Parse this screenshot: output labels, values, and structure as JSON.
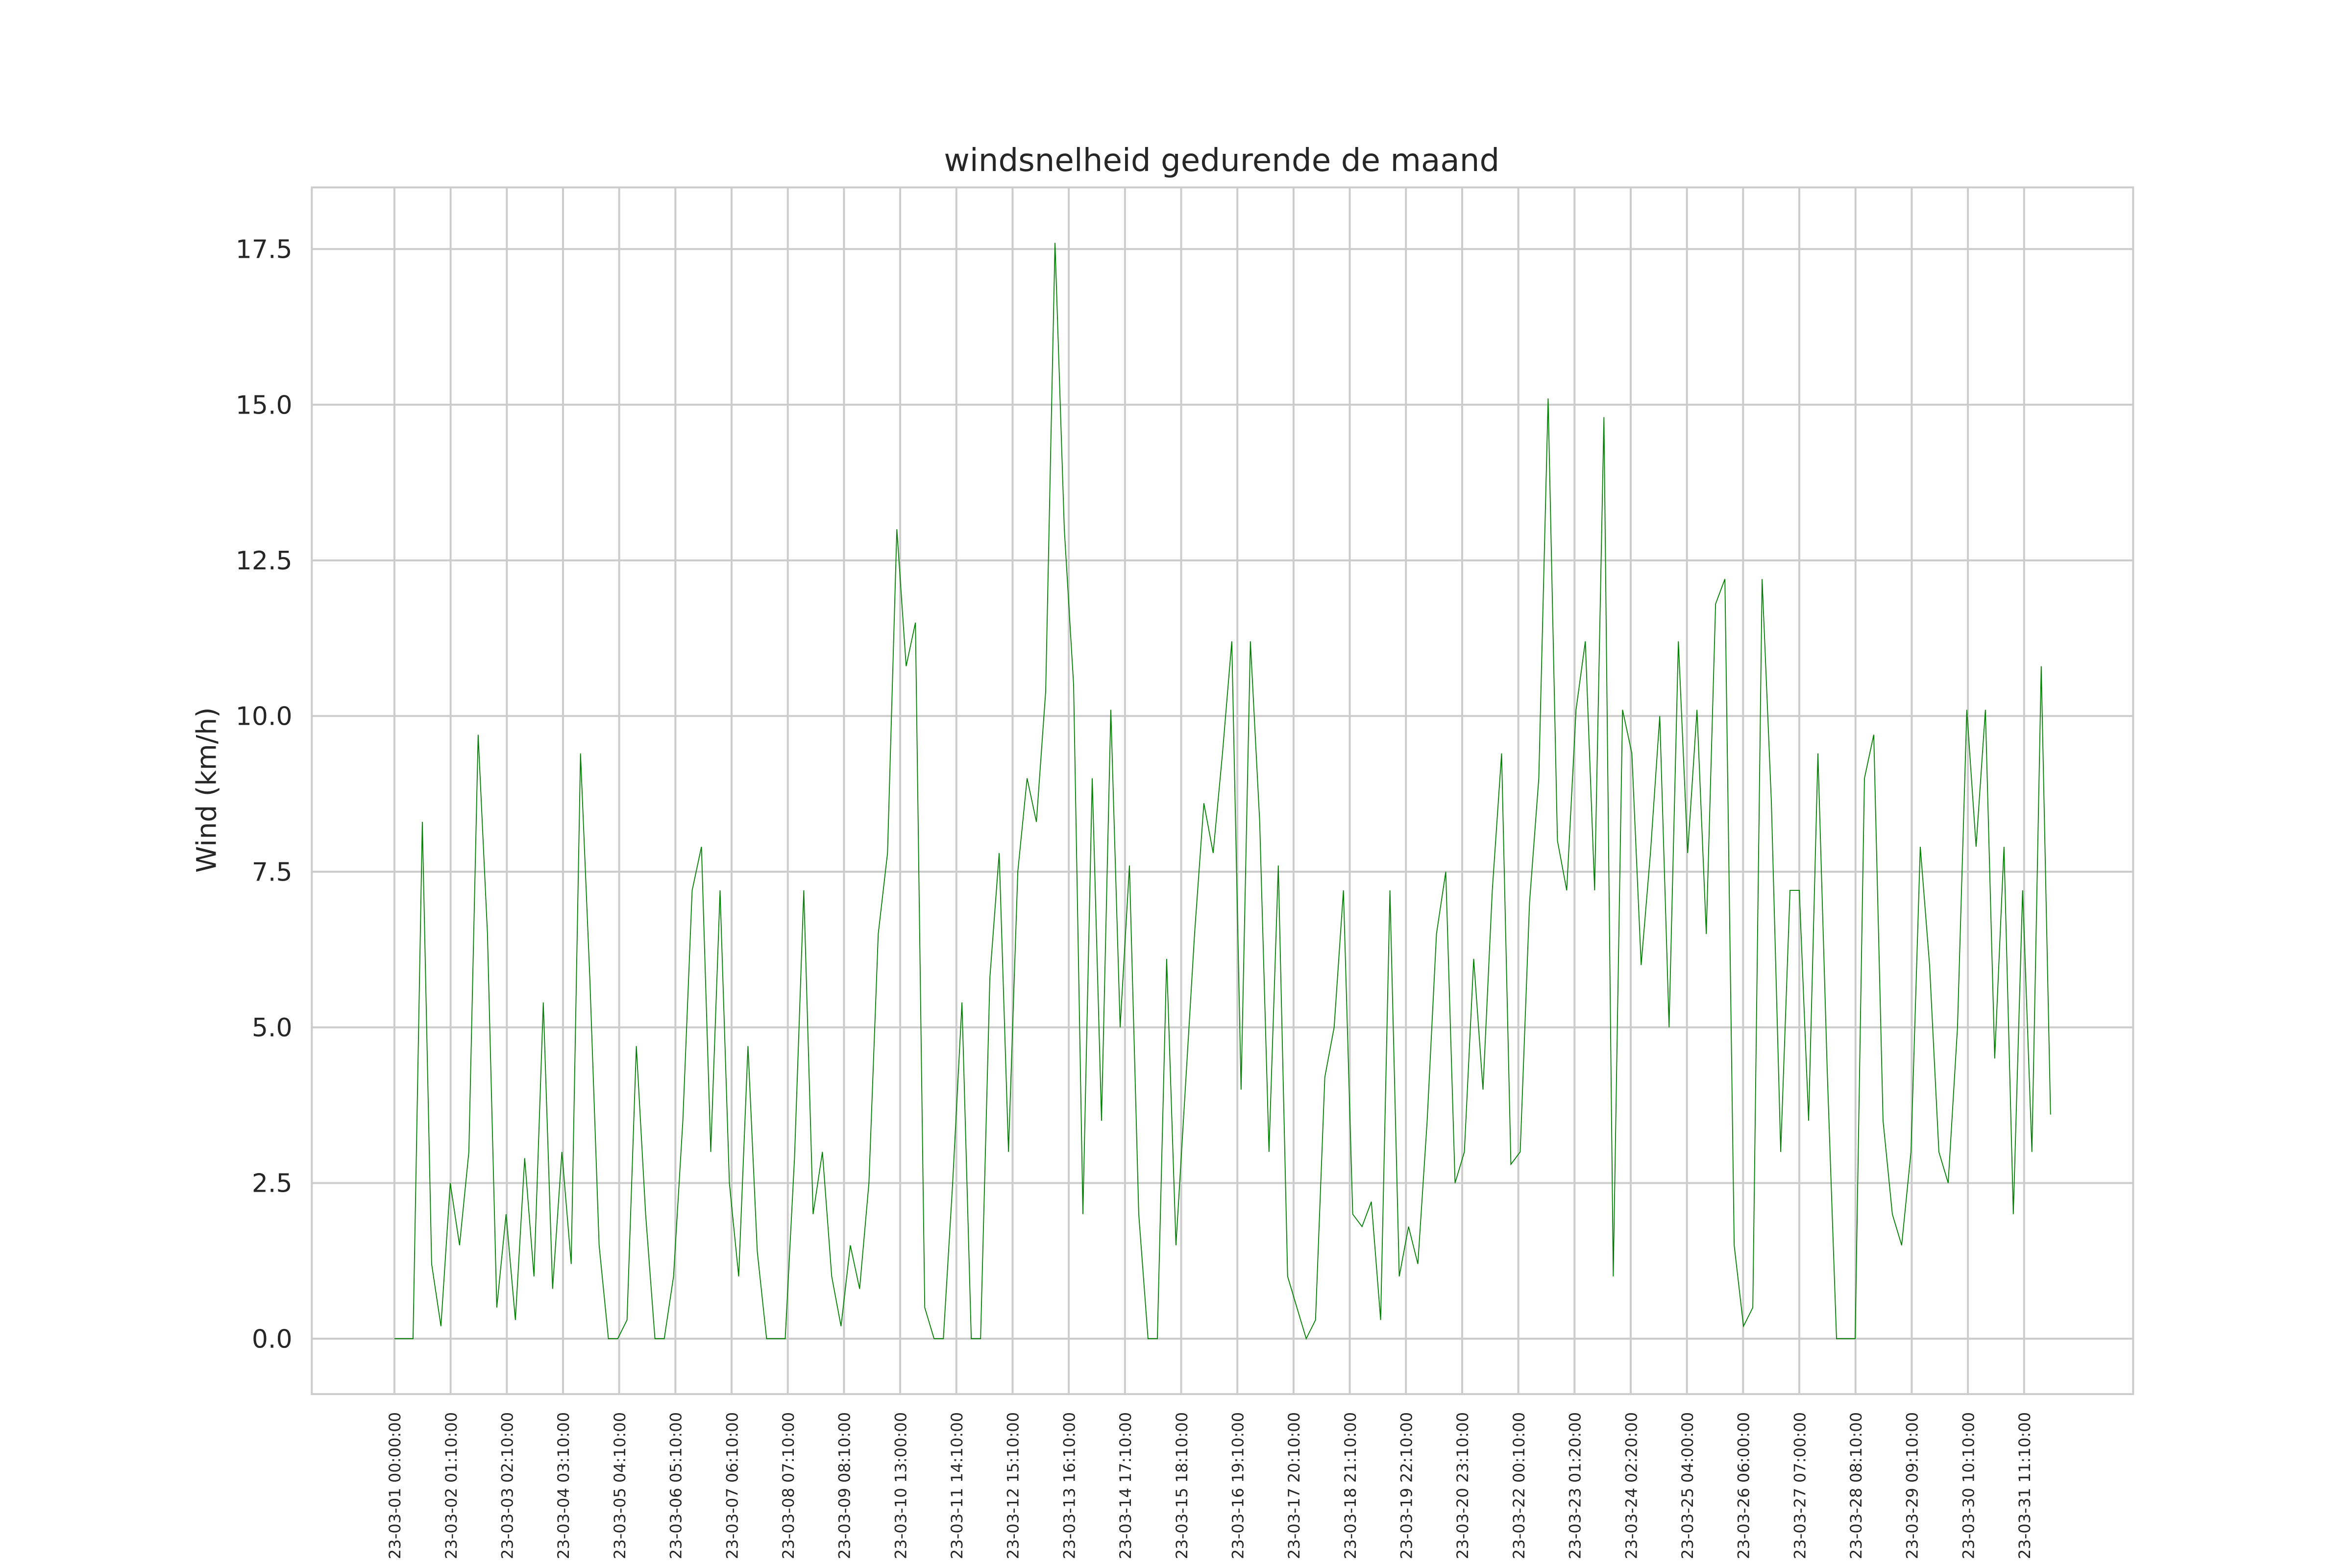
{
  "chart_data": {
    "type": "line",
    "title": "windsnelheid gedurende de maand",
    "y_label": "Wind (km/h)",
    "grid": true,
    "xlim": [
      -222,
      4672
    ],
    "ylim": [
      -0.89,
      18.49
    ],
    "yticks": [
      {
        "value": 0,
        "label": "0.0"
      },
      {
        "value": 2.5,
        "label": "2.5"
      },
      {
        "value": 5,
        "label": "5.0"
      },
      {
        "value": 7.5,
        "label": "7.5"
      },
      {
        "value": 10,
        "label": "10.0"
      },
      {
        "value": 12.5,
        "label": "12.5"
      },
      {
        "value": 15,
        "label": "15.0"
      },
      {
        "value": 17.5,
        "label": "17.5"
      }
    ],
    "xticks": [
      {
        "value": 0,
        "label": "23-03-01 00:00:00"
      },
      {
        "value": 151,
        "label": "23-03-02 01:10:00"
      },
      {
        "value": 302,
        "label": "23-03-03 02:10:00"
      },
      {
        "value": 453,
        "label": "23-03-04 03:10:00"
      },
      {
        "value": 604,
        "label": "23-03-05 04:10:00"
      },
      {
        "value": 755,
        "label": "23-03-06 05:10:00"
      },
      {
        "value": 906,
        "label": "23-03-07 06:10:00"
      },
      {
        "value": 1057,
        "label": "23-03-08 07:10:00"
      },
      {
        "value": 1208,
        "label": "23-03-09 08:10:00"
      },
      {
        "value": 1359,
        "label": "23-03-10 13:00:00"
      },
      {
        "value": 1510,
        "label": "23-03-11 14:10:00"
      },
      {
        "value": 1661,
        "label": "23-03-12 15:10:00"
      },
      {
        "value": 1812,
        "label": "23-03-13 16:10:00"
      },
      {
        "value": 1963,
        "label": "23-03-14 17:10:00"
      },
      {
        "value": 2114,
        "label": "23-03-15 18:10:00"
      },
      {
        "value": 2265,
        "label": "23-03-16 19:10:00"
      },
      {
        "value": 2416,
        "label": "23-03-17 20:10:00"
      },
      {
        "value": 2567,
        "label": "23-03-18 21:10:00"
      },
      {
        "value": 2718,
        "label": "23-03-19 22:10:00"
      },
      {
        "value": 2869,
        "label": "23-03-20 23:10:00"
      },
      {
        "value": 3020,
        "label": "23-03-22 00:10:00"
      },
      {
        "value": 3171,
        "label": "23-03-23 01:20:00"
      },
      {
        "value": 3322,
        "label": "23-03-24 02:20:00"
      },
      {
        "value": 3473,
        "label": "23-03-25 04:00:00"
      },
      {
        "value": 3624,
        "label": "23-03-26 06:00:00"
      },
      {
        "value": 3775,
        "label": "23-03-27 07:00:00"
      },
      {
        "value": 3926,
        "label": "23-03-28 08:10:00"
      },
      {
        "value": 4077,
        "label": "23-03-29 09:10:00"
      },
      {
        "value": 4228,
        "label": "23-03-30 10:10:00"
      },
      {
        "value": 4379,
        "label": "23-03-31 11:10:00"
      }
    ],
    "x": [
      0,
      25,
      50,
      75,
      100,
      125,
      150,
      175,
      200,
      225,
      250,
      275,
      300,
      325,
      350,
      375,
      400,
      425,
      450,
      475,
      500,
      525,
      550,
      575,
      600,
      625,
      650,
      675,
      700,
      725,
      750,
      775,
      800,
      825,
      850,
      875,
      900,
      925,
      950,
      975,
      1000,
      1025,
      1050,
      1075,
      1100,
      1125,
      1150,
      1175,
      1200,
      1225,
      1250,
      1275,
      1300,
      1325,
      1350,
      1375,
      1400,
      1425,
      1450,
      1475,
      1500,
      1525,
      1550,
      1575,
      1600,
      1625,
      1650,
      1675,
      1700,
      1725,
      1750,
      1775,
      1800,
      1825,
      1850,
      1875,
      1900,
      1925,
      1950,
      1975,
      2000,
      2025,
      2050,
      2075,
      2100,
      2125,
      2150,
      2175,
      2200,
      2225,
      2250,
      2275,
      2300,
      2325,
      2350,
      2375,
      2400,
      2425,
      2450,
      2475,
      2500,
      2525,
      2550,
      2575,
      2600,
      2625,
      2650,
      2675,
      2700,
      2725,
      2750,
      2775,
      2800,
      2825,
      2850,
      2875,
      2900,
      2925,
      2950,
      2975,
      3000,
      3025,
      3050,
      3075,
      3100,
      3125,
      3150,
      3175,
      3200,
      3225,
      3250,
      3275,
      3300,
      3325,
      3350,
      3375,
      3400,
      3425,
      3450,
      3475,
      3500,
      3525,
      3550,
      3575,
      3600,
      3625,
      3650,
      3675,
      3700,
      3725,
      3750,
      3775,
      3800,
      3825,
      3850,
      3875,
      3900,
      3925,
      3950,
      3975,
      4000,
      4025,
      4050,
      4075,
      4100,
      4125,
      4150,
      4175,
      4200,
      4225,
      4250,
      4275,
      4300,
      4325,
      4350,
      4375,
      4400,
      4425,
      4450
    ],
    "series": [
      {
        "color": "#008000",
        "values": [
          0,
          0,
          0,
          8.3,
          1.2,
          0.2,
          2.5,
          1.5,
          3.0,
          9.7,
          6.5,
          0.5,
          2.0,
          0.3,
          2.9,
          1.0,
          5.4,
          0.8,
          3.0,
          1.2,
          9.4,
          5.8,
          1.5,
          0,
          0,
          0.3,
          4.7,
          2.0,
          0,
          0,
          1.0,
          3.5,
          7.2,
          7.9,
          3.0,
          7.2,
          2.5,
          1.0,
          4.7,
          1.4,
          0,
          0,
          0,
          2.9,
          7.2,
          2.0,
          3.0,
          1.0,
          0.2,
          1.5,
          0.8,
          2.5,
          6.5,
          7.8,
          13.0,
          10.8,
          11.5,
          0.5,
          0,
          0,
          2.5,
          5.4,
          0,
          0,
          5.8,
          7.8,
          3.0,
          7.5,
          9.0,
          8.3,
          10.4,
          17.6,
          13.0,
          10.5,
          2.0,
          9.0,
          3.5,
          10.1,
          5.0,
          7.6,
          2.0,
          0,
          0,
          6.1,
          1.5,
          4.0,
          6.5,
          8.6,
          7.8,
          9.4,
          11.2,
          4.0,
          11.2,
          8.3,
          3.0,
          7.6,
          1.0,
          0.5,
          0,
          0.3,
          4.2,
          5.0,
          7.2,
          2.0,
          1.8,
          2.2,
          0.3,
          7.2,
          1.0,
          1.8,
          1.2,
          3.5,
          6.5,
          7.5,
          2.5,
          3.0,
          6.1,
          4.0,
          7.2,
          9.4,
          2.8,
          3.0,
          7.0,
          9.0,
          15.1,
          8.0,
          7.2,
          10.1,
          11.2,
          7.2,
          14.8,
          1.0,
          10.1,
          9.4,
          6.0,
          7.8,
          10.0,
          5.0,
          11.2,
          7.8,
          10.1,
          6.5,
          11.8,
          12.2,
          1.5,
          0.2,
          0.5,
          12.2,
          8.6,
          3.0,
          7.2,
          7.2,
          3.5,
          9.4,
          4.3,
          0,
          0,
          0,
          9.0,
          9.7,
          3.5,
          2.0,
          1.5,
          3.0,
          7.9,
          6.0,
          3.0,
          2.5,
          5.0,
          10.1,
          7.9,
          10.1,
          4.5,
          7.9,
          2.0,
          7.2,
          3.0,
          10.8,
          3.6
        ]
      }
    ]
  }
}
